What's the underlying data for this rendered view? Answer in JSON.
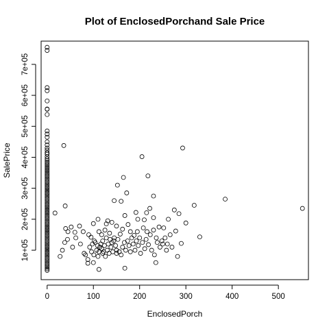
{
  "chart_data": {
    "type": "scatter",
    "title": "Plot of EnclosedPorchand Sale Price",
    "xlabel": "EnclosedPorch",
    "ylabel": "SalePrice",
    "xlim": [
      -13,
      565
    ],
    "ylim": [
      5000,
      775000
    ],
    "x_ticks": [
      0,
      100,
      200,
      300,
      400,
      500
    ],
    "x_tick_labels": [
      "0",
      "100",
      "200",
      "300",
      "400",
      "500"
    ],
    "y_ticks": [
      100000,
      200000,
      300000,
      400000,
      500000,
      600000,
      700000
    ],
    "y_tick_labels": [
      "1e+05",
      "2e+05",
      "3e+05",
      "4e+05",
      "5e+05",
      "6e+05",
      "7e+05"
    ],
    "grid": false,
    "legend": "none",
    "marker": "open-circle",
    "colors": {
      "marker": "#000000",
      "axes": "#000000",
      "background": "#ffffff"
    },
    "points_nonzero_x": [
      [
        36,
        438000
      ],
      [
        293,
        430000
      ],
      [
        205,
        402000
      ],
      [
        218,
        340000
      ],
      [
        165,
        335000
      ],
      [
        172,
        285000
      ],
      [
        152,
        310000
      ],
      [
        145,
        260000
      ],
      [
        160,
        258000
      ],
      [
        230,
        275000
      ],
      [
        318,
        245000
      ],
      [
        385,
        265000
      ],
      [
        552,
        235000
      ],
      [
        330,
        143000
      ],
      [
        39,
        243000
      ],
      [
        17,
        220000
      ],
      [
        275,
        230000
      ],
      [
        222,
        235000
      ],
      [
        215,
        221000
      ],
      [
        192,
        222000
      ],
      [
        168,
        212000
      ],
      [
        110,
        200000
      ],
      [
        100,
        186000
      ],
      [
        131,
        195000
      ],
      [
        140,
        190000
      ],
      [
        175,
        183000
      ],
      [
        196,
        200000
      ],
      [
        210,
        198000
      ],
      [
        230,
        205000
      ],
      [
        252,
        172000
      ],
      [
        262,
        200000
      ],
      [
        285,
        218000
      ],
      [
        300,
        188000
      ],
      [
        128,
        185000
      ],
      [
        40,
        170000
      ],
      [
        45,
        160000
      ],
      [
        52,
        175000
      ],
      [
        60,
        158000
      ],
      [
        70,
        178000
      ],
      [
        78,
        160000
      ],
      [
        90,
        150000
      ],
      [
        95,
        142000
      ],
      [
        102,
        130000
      ],
      [
        112,
        160000
      ],
      [
        118,
        150000
      ],
      [
        125,
        165000
      ],
      [
        135,
        155000
      ],
      [
        145,
        140000
      ],
      [
        150,
        178000
      ],
      [
        158,
        152000
      ],
      [
        163,
        168000
      ],
      [
        180,
        160000
      ],
      [
        188,
        148000
      ],
      [
        195,
        160000
      ],
      [
        200,
        140000
      ],
      [
        208,
        172000
      ],
      [
        216,
        160000
      ],
      [
        223,
        150000
      ],
      [
        230,
        165000
      ],
      [
        236,
        140000
      ],
      [
        242,
        175000
      ],
      [
        248,
        130000
      ],
      [
        255,
        140000
      ],
      [
        260,
        120000
      ],
      [
        266,
        150000
      ],
      [
        278,
        162000
      ],
      [
        290,
        122000
      ],
      [
        28,
        80000
      ],
      [
        33,
        100000
      ],
      [
        38,
        125000
      ],
      [
        44,
        135000
      ],
      [
        55,
        110000
      ],
      [
        62,
        140000
      ],
      [
        72,
        120000
      ],
      [
        83,
        85000
      ],
      [
        88,
        70000
      ],
      [
        92,
        110000
      ],
      [
        96,
        95000
      ],
      [
        98,
        120000
      ],
      [
        101,
        85000
      ],
      [
        104,
        125000
      ],
      [
        107,
        100000
      ],
      [
        109,
        115000
      ],
      [
        112,
        95000
      ],
      [
        114,
        110000
      ],
      [
        116,
        120000
      ],
      [
        118,
        105000
      ],
      [
        120,
        130000
      ],
      [
        122,
        95000
      ],
      [
        124,
        115000
      ],
      [
        126,
        80000
      ],
      [
        128,
        140000
      ],
      [
        130,
        100000
      ],
      [
        132,
        120000
      ],
      [
        134,
        90000
      ],
      [
        136,
        135000
      ],
      [
        138,
        110000
      ],
      [
        140,
        125000
      ],
      [
        142,
        95000
      ],
      [
        144,
        130000
      ],
      [
        148,
        115000
      ],
      [
        150,
        100000
      ],
      [
        153,
        135000
      ],
      [
        156,
        95000
      ],
      [
        160,
        85000
      ],
      [
        163,
        110000
      ],
      [
        167,
        125000
      ],
      [
        170,
        100000
      ],
      [
        174,
        130000
      ],
      [
        177,
        115000
      ],
      [
        180,
        95000
      ],
      [
        183,
        140000
      ],
      [
        186,
        120000
      ],
      [
        190,
        100000
      ],
      [
        193,
        130000
      ],
      [
        197,
        115000
      ],
      [
        202,
        90000
      ],
      [
        206,
        125000
      ],
      [
        211,
        105000
      ],
      [
        214,
        135000
      ],
      [
        219,
        118000
      ],
      [
        226,
        100000
      ],
      [
        232,
        85000
      ],
      [
        238,
        125000
      ],
      [
        244,
        110000
      ],
      [
        250,
        120000
      ],
      [
        258,
        100000
      ],
      [
        270,
        110000
      ],
      [
        282,
        80000
      ],
      [
        112,
        38000
      ],
      [
        168,
        42000
      ],
      [
        88,
        58000
      ],
      [
        235,
        60000
      ],
      [
        100,
        60000
      ],
      [
        80,
        90000
      ],
      [
        110,
        80000
      ],
      [
        120,
        90000
      ],
      [
        150,
        90000
      ]
    ],
    "points_zero_x_sale_prices": [
      755000,
      745000,
      625000,
      615000,
      582000,
      556000,
      555000,
      538000,
      485000,
      475000,
      465000,
      450000,
      440000,
      430000,
      423000,
      415000,
      410000,
      402000,
      395000,
      390000,
      385000,
      380000,
      375000,
      370000,
      365000,
      360000,
      355000,
      350000,
      345000,
      340000,
      335000,
      330000,
      325000,
      320000,
      315000,
      310000,
      305000,
      300000,
      295000,
      290000,
      285000,
      280000,
      275000,
      270000,
      265000,
      260000,
      255000,
      250000,
      245000,
      240000,
      235000,
      230000,
      225000,
      220000,
      215000,
      210000,
      205000,
      200000,
      195000,
      190000,
      185000,
      180000,
      175000,
      170000,
      165000,
      160000,
      155000,
      150000,
      145000,
      140000,
      135000,
      130000,
      125000,
      120000,
      115000,
      110000,
      105000,
      100000,
      95000,
      90000,
      85000,
      80000,
      75000,
      70000,
      65000,
      60000,
      55000,
      50000,
      45000,
      40000,
      35000
    ]
  }
}
